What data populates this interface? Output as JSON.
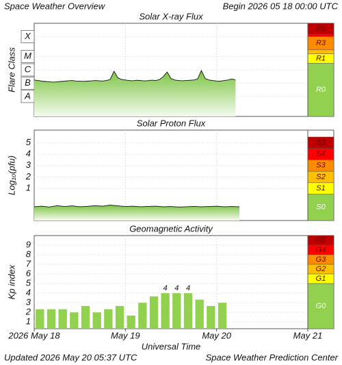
{
  "title": "Space Weather Overview",
  "begin": "Begin 2026 05 18 00:00 UTC",
  "updated": "Updated 2026 May 20 05:37 UTC",
  "credit": "Space Weather Prediction Center",
  "xlabel": "Universal Time",
  "chart_data": [
    {
      "type": "line",
      "title": "Solar X-ray Flux",
      "ylabel": "Flare Class",
      "log": true,
      "color": "#7cc443",
      "xlim": [
        0,
        72
      ],
      "ylim": [
        1e-09,
        0.01
      ],
      "yticks": [
        {
          "value": 3.16e-08,
          "label": "A"
        },
        {
          "value": 3.16e-07,
          "label": "B"
        },
        {
          "value": 3.16e-06,
          "label": "C"
        },
        {
          "value": 3.16e-05,
          "label": "M"
        },
        {
          "value": 0.001,
          "label": "X"
        }
      ],
      "x": [
        0,
        1,
        2,
        3,
        4,
        5,
        6,
        7,
        8,
        9,
        10,
        11,
        12,
        13,
        14,
        15,
        16,
        17,
        18,
        19,
        20,
        21,
        22,
        23,
        24,
        25,
        26,
        27,
        28,
        29,
        30,
        31,
        32,
        33,
        34,
        35,
        36,
        37,
        38,
        39,
        40,
        41,
        42,
        43,
        44,
        45,
        46,
        47,
        48,
        49,
        50,
        51,
        52,
        53
      ],
      "values": [
        5.5e-07,
        5e-07,
        4.5e-07,
        4.2e-07,
        4e-07,
        3.8e-07,
        4e-07,
        4.2e-07,
        4.5e-07,
        4.8e-07,
        5e-07,
        4.6e-07,
        4.4e-07,
        4.3e-07,
        4.5e-07,
        4.7e-07,
        5e-07,
        4.8e-07,
        4.6e-07,
        5e-07,
        6e-07,
        2.5e-06,
        8e-07,
        6e-07,
        5.5e-07,
        5e-07,
        4.8e-07,
        5.2e-07,
        5e-07,
        4.7e-07,
        4.9e-07,
        5.3e-07,
        5e-07,
        6e-07,
        1e-06,
        2.2e-06,
        7e-07,
        5.5e-07,
        5e-07,
        4.8e-07,
        5e-07,
        5.2e-07,
        5.5e-07,
        6.5e-07,
        2.8e-06,
        7e-07,
        5.5e-07,
        5e-07,
        4.6e-07,
        4.5e-07,
        5e-07,
        5.5e-07,
        6.5e-07,
        5.5e-07
      ],
      "scale": [
        {
          "label": "R5",
          "color": "#c00000",
          "lo": 0.0015,
          "hi": 0.01
        },
        {
          "label": null,
          "color": "#ff0000",
          "lo": 0.001,
          "hi": 0.0015
        },
        {
          "label": "R3",
          "color": "#ff8c00",
          "lo": 0.0001,
          "hi": 0.001
        },
        {
          "label": null,
          "color": "#ffc000",
          "lo": 5e-05,
          "hi": 0.0001
        },
        {
          "label": "R1",
          "color": "#ffff00",
          "lo": 1e-05,
          "hi": 5e-05
        },
        {
          "label": "R0",
          "color": "#92d050",
          "lo": 1e-09,
          "hi": 1e-05
        }
      ]
    },
    {
      "type": "line",
      "title": "Solar Proton Flux",
      "ylabel": "Log₁₀(pfu)",
      "color": "#7cc443",
      "xlim": [
        0,
        72
      ],
      "ylim": [
        -1.8,
        6.1
      ],
      "yticks": [
        1,
        2,
        3,
        4,
        5
      ],
      "x": [
        0,
        2,
        4,
        6,
        8,
        10,
        12,
        14,
        16,
        18,
        20,
        22,
        24,
        26,
        28,
        30,
        32,
        34,
        36,
        38,
        40,
        42,
        44,
        46,
        48,
        50,
        52,
        54
      ],
      "values": [
        -0.6,
        -0.55,
        -0.62,
        -0.5,
        -0.58,
        -0.52,
        -0.6,
        -0.56,
        -0.5,
        -0.55,
        -0.45,
        -0.52,
        -0.58,
        -0.55,
        -0.6,
        -0.57,
        -0.55,
        -0.6,
        -0.58,
        -0.62,
        -0.6,
        -0.57,
        -0.6,
        -0.58,
        -0.55,
        -0.6,
        -0.58,
        -0.6
      ],
      "scale": [
        {
          "label": "S5",
          "color": "#c00000",
          "lo": 4.5,
          "hi": 5.5
        },
        {
          "label": "S4",
          "color": "#ff0000",
          "lo": 3.5,
          "hi": 4.5
        },
        {
          "label": "S3",
          "color": "#ff8c00",
          "lo": 2.5,
          "hi": 3.5
        },
        {
          "label": "S2",
          "color": "#ffc000",
          "lo": 1.5,
          "hi": 2.5
        },
        {
          "label": "S1",
          "color": "#ffff00",
          "lo": 0.5,
          "hi": 1.5
        },
        {
          "label": "S0",
          "color": "#92d050",
          "lo": -1.8,
          "hi": 0.5
        }
      ]
    },
    {
      "type": "bar",
      "title": "Geomagnetic Activity",
      "ylabel": "Kp index",
      "color": "#92d050",
      "xlim": [
        0,
        72
      ],
      "ylim": [
        0.3,
        10
      ],
      "yticks": [
        1,
        2,
        3,
        4,
        5,
        6,
        7,
        8,
        9
      ],
      "xticks": [
        {
          "value": 0,
          "label": "2026 May 18"
        },
        {
          "value": 24,
          "label": "May 19"
        },
        {
          "value": 48,
          "label": "May 20"
        },
        {
          "value": 72,
          "label": "May 21"
        }
      ],
      "x": [
        1.5,
        4.5,
        7.5,
        10.5,
        13.5,
        16.5,
        19.5,
        22.5,
        25.5,
        28.5,
        31.5,
        34.5,
        37.5,
        40.5,
        43.5,
        46.5,
        49.5
      ],
      "values": [
        2.33,
        2.33,
        2.33,
        2,
        2.67,
        2,
        2.33,
        2.67,
        1.67,
        3,
        3.67,
        4,
        4,
        4,
        3.33,
        2.67,
        3
      ],
      "value_labels": [
        null,
        null,
        null,
        null,
        null,
        null,
        null,
        null,
        null,
        null,
        null,
        "4",
        "4",
        "4",
        null,
        null,
        null
      ],
      "scale": [
        {
          "label": "G5",
          "color": "#c00000",
          "lo": 9,
          "hi": 10
        },
        {
          "label": "G4",
          "color": "#ff0000",
          "lo": 8,
          "hi": 9
        },
        {
          "label": "G3",
          "color": "#ff8c00",
          "lo": 7,
          "hi": 8
        },
        {
          "label": "G2",
          "color": "#ffc000",
          "lo": 6,
          "hi": 7
        },
        {
          "label": "G1",
          "color": "#ffff00",
          "lo": 5,
          "hi": 6
        },
        {
          "label": "G0",
          "color": "#92d050",
          "lo": 0.3,
          "hi": 5
        }
      ]
    }
  ]
}
